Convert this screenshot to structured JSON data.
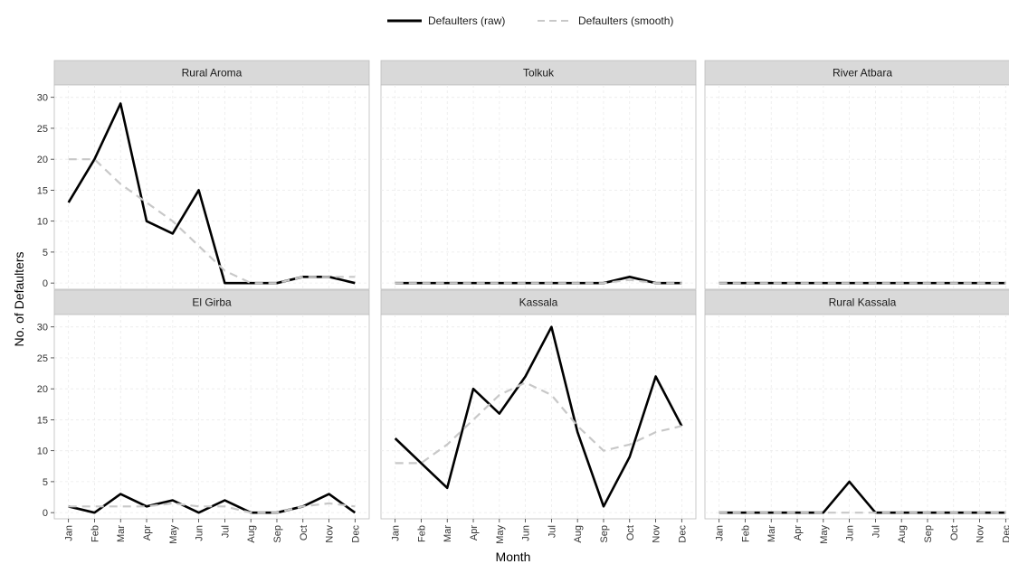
{
  "legend": {
    "raw_label": "Defaulters (raw)",
    "smooth_label": "Defaulters (smooth)"
  },
  "colors": {
    "raw_line": "#000000",
    "smooth_line": "#c8c8c8",
    "strip_bg": "#d9d9d9",
    "panel_border": "#bdbdbd",
    "grid": "#ebebeb"
  },
  "chart_data": {
    "type": "line",
    "facets": true,
    "xlabel": "Month",
    "ylabel": "No. of Defaulters",
    "x": [
      "Jan",
      "Feb",
      "Mar",
      "Apr",
      "May",
      "Jun",
      "Jul",
      "Aug",
      "Sep",
      "Oct",
      "Nov",
      "Dec"
    ],
    "ylim": [
      -1,
      32
    ],
    "yticks": [
      0,
      5,
      10,
      15,
      20,
      25,
      30
    ],
    "legend_position": "top",
    "grid": true,
    "panels": [
      {
        "title": "Rural Aroma",
        "series": [
          {
            "name": "Defaulters (raw)",
            "values": [
              13,
              20,
              29,
              10,
              8,
              15,
              0,
              0,
              0,
              1,
              1,
              0
            ]
          },
          {
            "name": "Defaulters (smooth)",
            "values": [
              20,
              20,
              16,
              13,
              10,
              6,
              2,
              0,
              0,
              1,
              1,
              1
            ]
          }
        ]
      },
      {
        "title": "Tolkuk",
        "series": [
          {
            "name": "Defaulters (raw)",
            "values": [
              0,
              0,
              0,
              0,
              0,
              0,
              0,
              0,
              0,
              1,
              0,
              0
            ]
          },
          {
            "name": "Defaulters (smooth)",
            "values": [
              0,
              0,
              0,
              0,
              0,
              0,
              0,
              0,
              0,
              0.5,
              0,
              0
            ]
          }
        ]
      },
      {
        "title": "River Atbara",
        "series": [
          {
            "name": "Defaulters (raw)",
            "values": [
              0,
              0,
              0,
              0,
              0,
              0,
              0,
              0,
              0,
              0,
              0,
              0
            ]
          },
          {
            "name": "Defaulters (smooth)",
            "values": [
              0,
              0,
              0,
              0,
              0,
              0,
              0,
              0,
              0,
              0,
              0,
              0
            ]
          }
        ]
      },
      {
        "title": "El Girba",
        "series": [
          {
            "name": "Defaulters (raw)",
            "values": [
              1,
              0,
              3,
              1,
              2,
              0,
              2,
              0,
              0,
              1,
              3,
              0
            ]
          },
          {
            "name": "Defaulters (smooth)",
            "values": [
              1,
              1,
              1,
              1,
              1.5,
              1,
              1,
              0,
              0,
              1,
              1.5,
              1
            ]
          }
        ]
      },
      {
        "title": "Kassala",
        "series": [
          {
            "name": "Defaulters (raw)",
            "values": [
              12,
              8,
              4,
              20,
              16,
              22,
              30,
              13,
              1,
              9,
              22,
              14
            ]
          },
          {
            "name": "Defaulters (smooth)",
            "values": [
              8,
              8,
              11,
              15,
              19,
              21,
              19,
              14,
              10,
              11,
              13,
              14
            ]
          }
        ]
      },
      {
        "title": "Rural Kassala",
        "series": [
          {
            "name": "Defaulters (raw)",
            "values": [
              0,
              0,
              0,
              0,
              0,
              5,
              0,
              0,
              0,
              0,
              0,
              0
            ]
          },
          {
            "name": "Defaulters (smooth)",
            "values": [
              0,
              0,
              0,
              0,
              0,
              0,
              0,
              0,
              0,
              0,
              0,
              0
            ]
          }
        ]
      }
    ]
  }
}
